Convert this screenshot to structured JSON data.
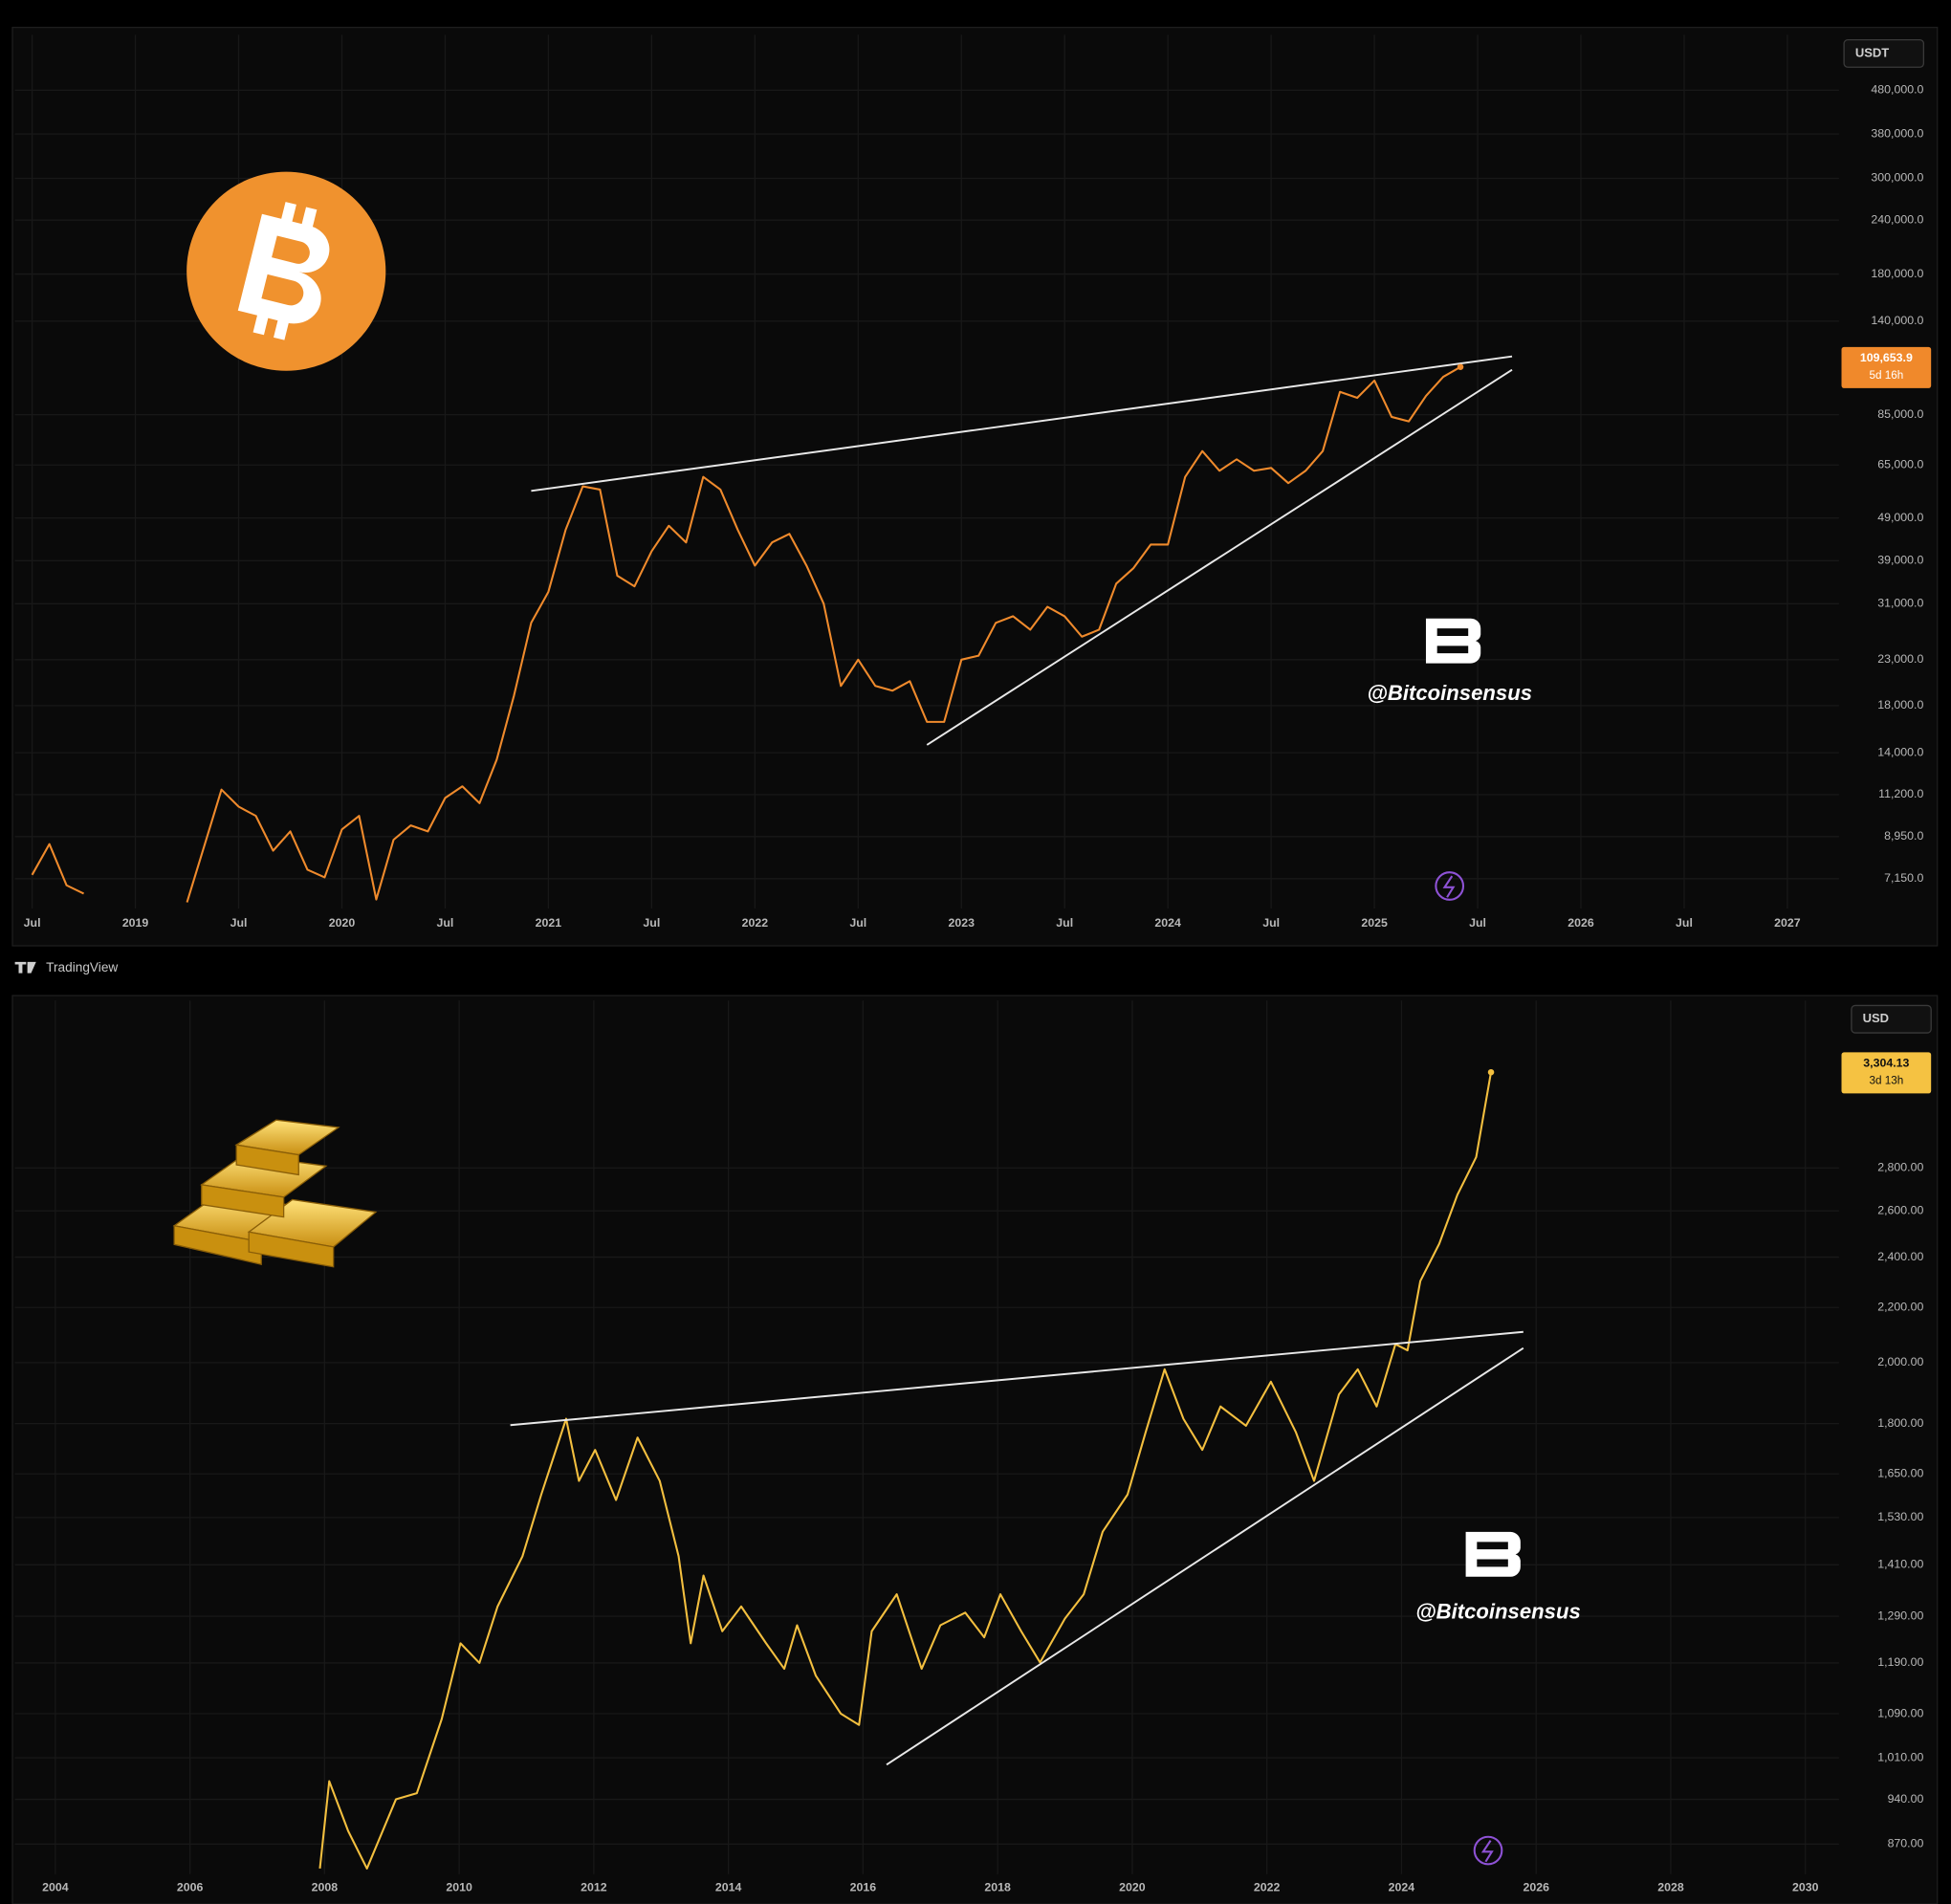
{
  "chart_data": [
    {
      "type": "line",
      "log_scale": true,
      "grid": true,
      "color": "#ef8a2c",
      "currency": "USDT",
      "watermark": "@Bitcoinsensus",
      "price_label_color": "#f0892b",
      "price_label_text_color": "#ffffff",
      "countdown": "5d 16h",
      "xlim": [
        "2018-06",
        "2027-04"
      ],
      "xticks": [
        {
          "value": "2018-07",
          "label": "Jul"
        },
        {
          "value": "2019-01",
          "label": "2019"
        },
        {
          "value": "2019-07",
          "label": "Jul"
        },
        {
          "value": "2020-01",
          "label": "2020"
        },
        {
          "value": "2020-07",
          "label": "Jul"
        },
        {
          "value": "2021-01",
          "label": "2021"
        },
        {
          "value": "2021-07",
          "label": "Jul"
        },
        {
          "value": "2022-01",
          "label": "2022"
        },
        {
          "value": "2022-07",
          "label": "Jul"
        },
        {
          "value": "2023-01",
          "label": "2023"
        },
        {
          "value": "2023-07",
          "label": "Jul"
        },
        {
          "value": "2024-01",
          "label": "2024"
        },
        {
          "value": "2024-07",
          "label": "Jul"
        },
        {
          "value": "2025-01",
          "label": "2025"
        },
        {
          "value": "2025-07",
          "label": "Jul"
        },
        {
          "value": "2026-01",
          "label": "2026"
        },
        {
          "value": "2026-07",
          "label": "Jul"
        },
        {
          "value": "2027-01",
          "label": "2027"
        }
      ],
      "ylim": [
        6100,
        645000
      ],
      "yticks": [
        {
          "value": 480000,
          "label": "480,000.0"
        },
        {
          "value": 380000,
          "label": "380,000.0"
        },
        {
          "value": 300000,
          "label": "300,000.0"
        },
        {
          "value": 240000,
          "label": "240,000.0"
        },
        {
          "value": 180000,
          "label": "180,000.0"
        },
        {
          "value": 140000,
          "label": "140,000.0"
        },
        {
          "value": 85000,
          "label": "85,000.0"
        },
        {
          "value": 65000,
          "label": "65,000.0"
        },
        {
          "value": 49000,
          "label": "49,000.0"
        },
        {
          "value": 39000,
          "label": "39,000.0"
        },
        {
          "value": 31000,
          "label": "31,000.0"
        },
        {
          "value": 23000,
          "label": "23,000.0"
        },
        {
          "value": 18000,
          "label": "18,000.0"
        },
        {
          "value": 14000,
          "label": "14,000.0"
        },
        {
          "value": 11200,
          "label": "11,200.0"
        },
        {
          "value": 8950,
          "label": "8,950.0"
        },
        {
          "value": 7150,
          "label": "7,150.0"
        }
      ],
      "x": [
        "2018-07",
        "2018-08",
        "2018-09",
        "2018-10",
        "2018-11",
        "2019-04",
        "2019-05",
        "2019-06",
        "2019-07",
        "2019-08",
        "2019-09",
        "2019-10",
        "2019-11",
        "2019-12",
        "2020-01",
        "2020-02",
        "2020-03",
        "2020-04",
        "2020-05",
        "2020-06",
        "2020-07",
        "2020-08",
        "2020-09",
        "2020-10",
        "2020-11",
        "2020-12",
        "2021-01",
        "2021-02",
        "2021-03",
        "2021-04",
        "2021-05",
        "2021-06",
        "2021-07",
        "2021-08",
        "2021-09",
        "2021-10",
        "2021-11",
        "2021-12",
        "2022-01",
        "2022-02",
        "2022-03",
        "2022-04",
        "2022-05",
        "2022-06",
        "2022-07",
        "2022-08",
        "2022-09",
        "2022-10",
        "2022-11",
        "2022-12",
        "2023-01",
        "2023-02",
        "2023-03",
        "2023-04",
        "2023-05",
        "2023-06",
        "2023-07",
        "2023-08",
        "2023-09",
        "2023-10",
        "2023-11",
        "2023-12",
        "2024-01",
        "2024-02",
        "2024-03",
        "2024-04",
        "2024-05",
        "2024-06",
        "2024-07",
        "2024-08",
        "2024-09",
        "2024-10",
        "2024-11",
        "2024-12",
        "2025-01",
        "2025-02",
        "2025-03",
        "2025-04",
        "2025-05",
        "2025-06"
      ],
      "values": [
        7300,
        8600,
        6900,
        6600,
        null,
        6300,
        8500,
        11500,
        10500,
        10000,
        8300,
        9200,
        7500,
        7200,
        9300,
        10000,
        6400,
        8800,
        9500,
        9200,
        11000,
        11700,
        10700,
        13500,
        19000,
        28000,
        33000,
        46000,
        58000,
        57000,
        36000,
        34000,
        41000,
        47000,
        43000,
        61000,
        57000,
        46000,
        38000,
        43000,
        45000,
        38000,
        31000,
        20000,
        23000,
        20000,
        19500,
        20500,
        16500,
        16500,
        23000,
        23500,
        28000,
        29000,
        27000,
        30500,
        29000,
        26000,
        27000,
        34500,
        37500,
        42500,
        42500,
        61000,
        70000,
        63000,
        67000,
        63000,
        64000,
        59000,
        63000,
        70000,
        96000,
        93000,
        102000,
        84000,
        82000,
        94000,
        104000,
        109653.9
      ],
      "value_labels": [
        null,
        null,
        null,
        null,
        null,
        null,
        null,
        null,
        null,
        null,
        null,
        null,
        null,
        null,
        null,
        null,
        null,
        null,
        null,
        null,
        null,
        null,
        null,
        null,
        null,
        null,
        null,
        null,
        null,
        null,
        null,
        null,
        null,
        null,
        null,
        null,
        null,
        null,
        null,
        null,
        null,
        null,
        null,
        null,
        null,
        null,
        null,
        null,
        null,
        null,
        null,
        null,
        null,
        null,
        null,
        null,
        null,
        null,
        null,
        null,
        null,
        null,
        null,
        null,
        null,
        null,
        null,
        null,
        null,
        null,
        null,
        null,
        null,
        null,
        null,
        null,
        null,
        null,
        null,
        "109,653.9"
      ],
      "trendlines": [
        {
          "x": [
            "2020-12",
            "2025-09"
          ],
          "values": [
            56600,
            116000
          ]
        },
        {
          "x": [
            "2022-11",
            "2025-09"
          ],
          "values": [
            14600,
            108000
          ]
        }
      ],
      "trendline_color": "#e8e8e8"
    },
    {
      "type": "line",
      "log_scale": true,
      "grid": true,
      "color": "#f3bf3f",
      "currency": "USD",
      "watermark": "@Bitcoinsensus",
      "price_label_color": "#f5c242",
      "price_label_text_color": "#111111",
      "countdown": "3d 13h",
      "xlim": [
        2003.4,
        2030.5
      ],
      "xticks": [
        2004,
        2006,
        2008,
        2010,
        2012,
        2014,
        2016,
        2018,
        2020,
        2022,
        2024,
        2026,
        2028,
        2030
      ],
      "ylim": [
        826,
        3740
      ],
      "yticks": [
        {
          "value": 2800,
          "label": "2,800.00"
        },
        {
          "value": 2600,
          "label": "2,600.00"
        },
        {
          "value": 2400,
          "label": "2,400.00"
        },
        {
          "value": 2200,
          "label": "2,200.00"
        },
        {
          "value": 2000,
          "label": "2,000.00"
        },
        {
          "value": 1800,
          "label": "1,800.00"
        },
        {
          "value": 1650,
          "label": "1,650.00"
        },
        {
          "value": 1530,
          "label": "1,530.00"
        },
        {
          "value": 1410,
          "label": "1,410.00"
        },
        {
          "value": 1290,
          "label": "1,290.00"
        },
        {
          "value": 1190,
          "label": "1,190.00"
        },
        {
          "value": 1090,
          "label": "1,090.00"
        },
        {
          "value": 1010,
          "label": "1,010.00"
        },
        {
          "value": 940,
          "label": "940.00"
        },
        {
          "value": 870,
          "label": "870.00"
        }
      ],
      "x": [
        2007.93,
        2008.07,
        2008.35,
        2008.63,
        2009.06,
        2009.37,
        2009.74,
        2010.02,
        2010.3,
        2010.57,
        2010.94,
        2011.22,
        2011.59,
        2011.78,
        2012.02,
        2012.33,
        2012.65,
        2012.98,
        2013.26,
        2013.44,
        2013.63,
        2013.91,
        2014.19,
        2014.56,
        2014.83,
        2015.02,
        2015.3,
        2015.67,
        2015.94,
        2016.13,
        2016.5,
        2016.87,
        2017.15,
        2017.52,
        2017.8,
        2018.04,
        2018.35,
        2018.63,
        2019,
        2019.28,
        2019.56,
        2019.93,
        2020.2,
        2020.48,
        2020.76,
        2021.04,
        2021.31,
        2021.69,
        2022.06,
        2022.43,
        2022.7,
        2023.07,
        2023.35,
        2023.63,
        2023.91,
        2024.09,
        2024.28,
        2024.56,
        2024.83,
        2025.11,
        2025.33
      ],
      "values": [
        834,
        970,
        890,
        834,
        940,
        950,
        1080,
        1231,
        1190,
        1312,
        1431,
        1592,
        1815,
        1630,
        1720,
        1577,
        1757,
        1630,
        1431,
        1231,
        1384,
        1257,
        1312,
        1231,
        1178,
        1270,
        1164,
        1090,
        1069,
        1257,
        1340,
        1178,
        1270,
        1298,
        1244,
        1340,
        1257,
        1191,
        1285,
        1340,
        1493,
        1592,
        1774,
        1977,
        1815,
        1720,
        1854,
        1793,
        1935,
        1774,
        1630,
        1893,
        1977,
        1854,
        2065,
        2043,
        2303,
        2456,
        2673,
        2853,
        3304.13
      ],
      "value_labels": [
        null,
        null,
        null,
        null,
        null,
        null,
        null,
        null,
        null,
        null,
        null,
        null,
        null,
        null,
        null,
        null,
        null,
        null,
        null,
        null,
        null,
        null,
        null,
        null,
        null,
        null,
        null,
        null,
        null,
        null,
        null,
        null,
        null,
        null,
        null,
        null,
        null,
        null,
        null,
        null,
        null,
        null,
        null,
        null,
        null,
        null,
        null,
        null,
        null,
        null,
        null,
        null,
        null,
        null,
        null,
        null,
        null,
        null,
        null,
        null,
        "3,304.13"
      ],
      "trendlines": [
        {
          "x": [
            2010.76,
            2025.81
          ],
          "values": [
            1795,
            2109
          ]
        },
        {
          "x": [
            2016.35,
            2025.81
          ],
          "values": [
            998,
            2051
          ]
        }
      ],
      "trendline_color": "#e8e8e8"
    }
  ],
  "brand": "TradingView"
}
